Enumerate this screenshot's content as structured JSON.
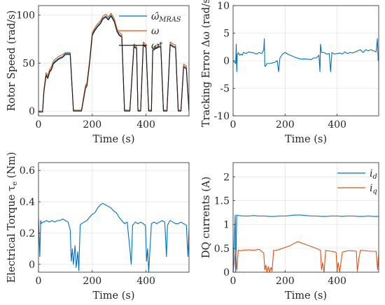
{
  "chart_data": [
    {
      "type": "line",
      "xlabel": "Time (s)",
      "ylabel": "Rotor Speed (rad/s)",
      "xlim": [
        0,
        560
      ],
      "ylim": [
        -5,
        110
      ],
      "xticks": [
        0,
        200,
        400
      ],
      "yticks": [
        0,
        50,
        100
      ],
      "xtick_labels": [
        "0",
        "200",
        "400"
      ],
      "ytick_labels": [
        "0",
        "50",
        "100"
      ],
      "grid": true,
      "legend": "top-right",
      "series": [
        {
          "name": "ω̂MRAS",
          "color": "#0072BD",
          "x": [
            0,
            15,
            20,
            28,
            35,
            42,
            48,
            55,
            62,
            75,
            90,
            100,
            118,
            130,
            150,
            160,
            175,
            180,
            190,
            200,
            210,
            220,
            230,
            240,
            250,
            260,
            270,
            282,
            292,
            300,
            310,
            320,
            340,
            355,
            365,
            370,
            380,
            390,
            400,
            410,
            420,
            425,
            440,
            455,
            465,
            478,
            490,
            500,
            510,
            520,
            530,
            540,
            550,
            560
          ],
          "y": [
            -1,
            -1,
            20,
            38,
            35,
            42,
            44,
            50,
            52,
            55,
            57,
            60,
            60,
            0,
            0,
            0,
            25,
            27,
            50,
            80,
            85,
            89,
            92,
            97,
            99,
            96,
            100,
            94,
            84,
            80,
            78,
            0,
            0,
            68,
            66,
            0,
            0,
            70,
            67,
            0,
            0,
            64,
            67,
            68,
            0,
            0,
            70,
            68,
            67,
            0,
            0,
            47,
            45,
            0
          ]
        },
        {
          "name": "ω",
          "color": "#D95319",
          "x": [
            0,
            15,
            20,
            28,
            35,
            42,
            48,
            55,
            62,
            75,
            90,
            100,
            118,
            130,
            150,
            160,
            175,
            180,
            190,
            200,
            210,
            220,
            230,
            240,
            250,
            260,
            270,
            282,
            292,
            300,
            310,
            320,
            340,
            355,
            365,
            370,
            380,
            390,
            400,
            410,
            420,
            425,
            440,
            455,
            465,
            478,
            490,
            500,
            510,
            520,
            530,
            540,
            550,
            560
          ],
          "y": [
            0,
            0,
            22,
            40,
            37,
            44,
            46,
            52,
            54,
            57,
            59,
            61,
            61,
            1,
            1,
            1,
            27,
            29,
            52,
            82,
            87,
            91,
            94,
            99,
            101,
            98,
            102,
            96,
            86,
            82,
            80,
            1,
            1,
            70,
            68,
            1,
            1,
            72,
            69,
            1,
            1,
            66,
            69,
            70,
            1,
            1,
            72,
            70,
            69,
            1,
            1,
            49,
            47,
            1
          ]
        },
        {
          "name": "ω*",
          "color": "#1a1a1a",
          "x": [
            0,
            15,
            20,
            28,
            35,
            42,
            48,
            55,
            62,
            75,
            90,
            100,
            118,
            130,
            150,
            160,
            175,
            180,
            190,
            200,
            210,
            220,
            230,
            240,
            250,
            260,
            270,
            282,
            292,
            300,
            310,
            320,
            340,
            355,
            365,
            370,
            380,
            390,
            400,
            410,
            420,
            425,
            440,
            455,
            465,
            478,
            490,
            500,
            510,
            520,
            530,
            540,
            550,
            560
          ],
          "y": [
            -1,
            -1,
            20,
            37,
            34,
            41,
            43,
            49,
            51,
            54,
            56,
            59,
            59,
            0,
            0,
            0,
            24,
            26,
            49,
            79,
            84,
            88,
            91,
            96,
            98,
            95,
            99,
            93,
            83,
            79,
            77,
            0,
            0,
            67,
            65,
            0,
            0,
            69,
            66,
            0,
            0,
            63,
            66,
            67,
            0,
            0,
            69,
            67,
            66,
            0,
            0,
            46,
            44,
            0
          ]
        }
      ]
    },
    {
      "type": "line",
      "xlabel": "Time (s)",
      "ylabel": "Tracking Error Δω (rad/s)",
      "xlim": [
        0,
        560
      ],
      "ylim": [
        -10,
        10
      ],
      "xticks": [
        0,
        200,
        400
      ],
      "yticks": [
        -10,
        -5,
        0,
        5,
        10
      ],
      "xtick_labels": [
        "0",
        "200",
        "400"
      ],
      "ytick_labels": [
        "-10",
        "-5",
        "0",
        "5",
        "10"
      ],
      "grid": true,
      "series": [
        {
          "name": "",
          "color": "#0072BD",
          "x": [
            0,
            10,
            12,
            14,
            16,
            20,
            25,
            30,
            35,
            40,
            50,
            60,
            70,
            80,
            90,
            100,
            110,
            118,
            120,
            122,
            125,
            130,
            140,
            160,
            170,
            175,
            180,
            190,
            200,
            210,
            220,
            240,
            260,
            280,
            300,
            310,
            320,
            330,
            334,
            336,
            340,
            350,
            360,
            370,
            375,
            380,
            390,
            400,
            410,
            420,
            430,
            440,
            450,
            460,
            470,
            480,
            490,
            500,
            510,
            520,
            530,
            540,
            550,
            555,
            558,
            560
          ],
          "y": [
            0,
            -0.5,
            3,
            -2,
            1,
            1.5,
            1,
            1.2,
            1,
            1.5,
            1.3,
            1.6,
            1.5,
            1.4,
            1.2,
            1.5,
            1.3,
            2,
            4,
            -1,
            -1,
            -0.5,
            -0.5,
            -0.3,
            0,
            -2,
            0.5,
            1.2,
            1.5,
            1.2,
            1,
            0.6,
            0.3,
            0.3,
            0.2,
            0.5,
            0.5,
            1,
            -2,
            3,
            1.5,
            1.5,
            1.2,
            1.3,
            -2,
            1.5,
            1.2,
            1.3,
            1.4,
            1.2,
            1.6,
            1.3,
            1.5,
            1.4,
            1.6,
            1.8,
            2,
            1.5,
            2,
            1.8,
            2,
            1.8,
            1.6,
            4,
            0,
            0.5
          ]
        }
      ]
    },
    {
      "type": "line",
      "xlabel": "Time (s)",
      "ylabel": "Electrical Torque τe (Nm)",
      "xlim": [
        0,
        560
      ],
      "ylim": [
        -0.05,
        0.65
      ],
      "xticks": [
        0,
        200,
        400
      ],
      "yticks": [
        0,
        0.2,
        0.4,
        0.6
      ],
      "xtick_labels": [
        "0",
        "200",
        "400"
      ],
      "ytick_labels": [
        "0",
        "0.2",
        "0.4",
        "0.6"
      ],
      "grid": true,
      "series": [
        {
          "name": "",
          "color": "#0072BD",
          "x": [
            0,
            5,
            8,
            10,
            15,
            20,
            30,
            40,
            50,
            60,
            70,
            80,
            90,
            100,
            110,
            118,
            122,
            126,
            130,
            136,
            140,
            146,
            150,
            155,
            160,
            170,
            180,
            190,
            200,
            210,
            220,
            230,
            240,
            250,
            260,
            270,
            280,
            290,
            300,
            310,
            320,
            330,
            340,
            345,
            350,
            356,
            360,
            370,
            380,
            390,
            398,
            402,
            406,
            410,
            420,
            430,
            440,
            450,
            460,
            470,
            476,
            480,
            486,
            490,
            500,
            510,
            520,
            530,
            540,
            550,
            556,
            560
          ],
          "y": [
            0.3,
            0.05,
            0.28,
            0.26,
            0.27,
            0.27,
            0.28,
            0.27,
            0.28,
            0.27,
            0.28,
            0.28,
            0.29,
            0.28,
            0.27,
            0.22,
            0.02,
            0.1,
            0.0,
            0.12,
            -0.02,
            0.08,
            -0.04,
            0.25,
            0.26,
            0.27,
            0.28,
            0.3,
            0.32,
            0.33,
            0.36,
            0.38,
            0.39,
            0.38,
            0.37,
            0.36,
            0.34,
            0.33,
            0.3,
            0.28,
            0.26,
            0.27,
            0.1,
            0.0,
            0.25,
            0.26,
            0.27,
            0.26,
            0.27,
            0.26,
            0.25,
            0.02,
            0.1,
            -0.05,
            0.26,
            0.27,
            0.26,
            0.27,
            0.28,
            0.27,
            0.05,
            0.25,
            0.27,
            0.28,
            0.27,
            0.26,
            0.26,
            0.27,
            0.26,
            0.25,
            0.05,
            0.22
          ]
        }
      ]
    },
    {
      "type": "line",
      "xlabel": "Time (s)",
      "ylabel": "DQ currents (A)",
      "xlim": [
        0,
        560
      ],
      "ylim": [
        0,
        2.3
      ],
      "xticks": [
        0,
        200,
        400
      ],
      "yticks": [
        0,
        0.5,
        1,
        1.5,
        2
      ],
      "xtick_labels": [
        "0",
        "200",
        "400"
      ],
      "ytick_labels": [
        "0",
        "0.5",
        "1",
        "1.5",
        "2"
      ],
      "grid": true,
      "legend": "top-right",
      "series": [
        {
          "name": "id",
          "color": "#0072BD",
          "x": [
            0,
            8,
            10,
            14,
            20,
            40,
            60,
            80,
            100,
            120,
            140,
            160,
            180,
            200,
            220,
            240,
            260,
            280,
            300,
            320,
            340,
            360,
            380,
            400,
            420,
            440,
            460,
            480,
            500,
            520,
            540,
            560
          ],
          "y": [
            0,
            1.2,
            0,
            1.2,
            1.19,
            1.18,
            1.18,
            1.19,
            1.18,
            1.18,
            1.17,
            1.17,
            1.18,
            1.18,
            1.19,
            1.2,
            1.2,
            1.19,
            1.18,
            1.18,
            1.17,
            1.17,
            1.18,
            1.18,
            1.17,
            1.18,
            1.18,
            1.17,
            1.17,
            1.18,
            1.17,
            1.17
          ]
        },
        {
          "name": "iq",
          "color": "#D95319",
          "x": [
            0,
            10,
            14,
            20,
            30,
            40,
            60,
            80,
            100,
            118,
            122,
            126,
            130,
            136,
            140,
            146,
            150,
            156,
            160,
            180,
            200,
            220,
            240,
            250,
            260,
            280,
            300,
            320,
            336,
            340,
            344,
            350,
            356,
            360,
            380,
            396,
            400,
            404,
            410,
            420,
            440,
            460,
            474,
            478,
            484,
            490,
            510,
            530,
            550,
            556,
            560
          ],
          "y": [
            0,
            0.45,
            0.05,
            0.46,
            0.45,
            0.46,
            0.47,
            0.46,
            0.48,
            0.4,
            0.05,
            0.15,
            0,
            0.12,
            0,
            0.1,
            0.02,
            0.46,
            0.45,
            0.48,
            0.52,
            0.56,
            0.62,
            0.64,
            0.62,
            0.58,
            0.54,
            0.5,
            0.46,
            0.05,
            0.2,
            0.0,
            0.46,
            0.45,
            0.44,
            0.42,
            0.03,
            0.2,
            0.0,
            0.42,
            0.45,
            0.45,
            0.44,
            0.02,
            0.3,
            0.46,
            0.45,
            0.44,
            0.44,
            0.05,
            0.4
          ]
        }
      ]
    }
  ]
}
